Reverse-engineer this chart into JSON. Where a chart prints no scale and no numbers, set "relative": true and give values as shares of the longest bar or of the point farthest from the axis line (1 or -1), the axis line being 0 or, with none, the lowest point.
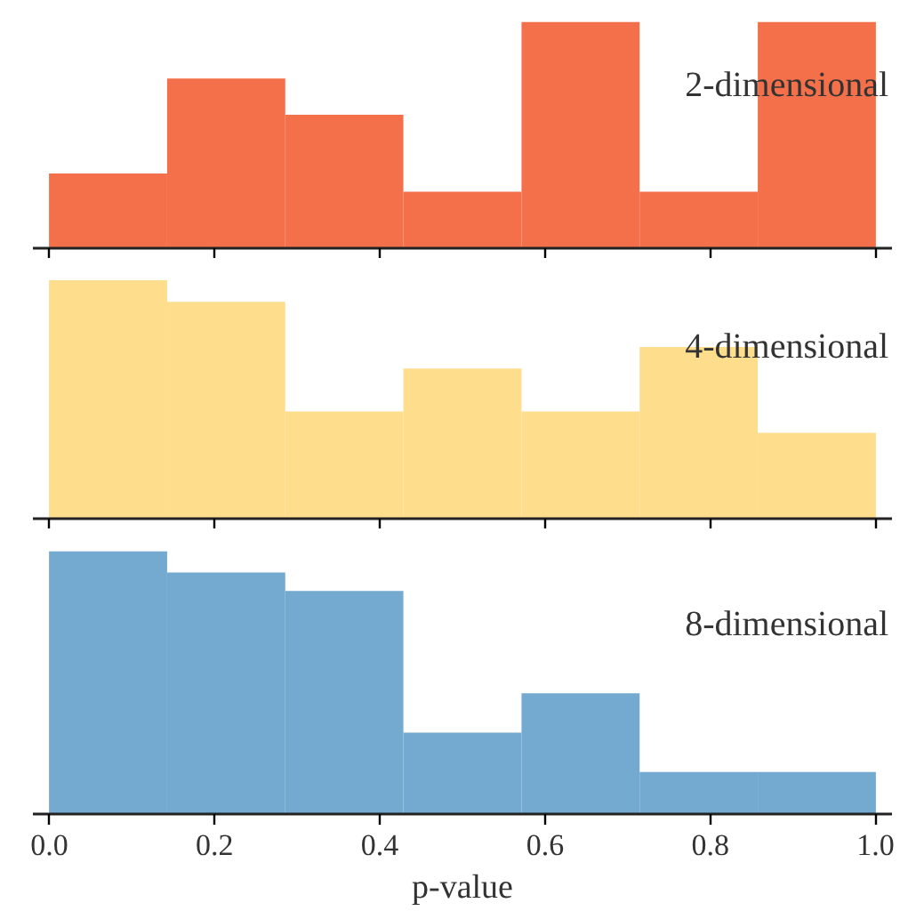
{
  "chart_data": [
    {
      "type": "bar",
      "relative": true,
      "x": [
        0.071,
        0.214,
        0.357,
        0.5,
        0.643,
        0.786,
        0.929
      ],
      "values": [
        0.33,
        0.75,
        0.59,
        0.25,
        1,
        0.25,
        1
      ],
      "color": "#f4704a",
      "xlim": [
        -0.02,
        1.02
      ],
      "xticks": [
        0,
        0.2,
        0.4,
        0.6,
        0.8,
        1
      ],
      "tick_labels": false,
      "grid": false,
      "annotations": [
        "2-dimensional"
      ]
    },
    {
      "type": "bar",
      "relative": true,
      "x": [
        0.071,
        0.214,
        0.357,
        0.5,
        0.643,
        0.786,
        0.929
      ],
      "values": [
        1,
        0.91,
        0.45,
        0.63,
        0.45,
        0.72,
        0.36
      ],
      "color": "#fedd8c",
      "xlim": [
        -0.02,
        1.02
      ],
      "xticks": [
        0,
        0.2,
        0.4,
        0.6,
        0.8,
        1
      ],
      "tick_labels": false,
      "grid": false,
      "annotations": [
        "4-dimensional"
      ]
    },
    {
      "type": "bar",
      "relative": true,
      "x": [
        0.071,
        0.214,
        0.357,
        0.5,
        0.643,
        0.786,
        0.929
      ],
      "values": [
        1,
        0.92,
        0.85,
        0.31,
        0.46,
        0.16,
        0.16
      ],
      "color": "#74aad0",
      "xlim": [
        -0.02,
        1.02
      ],
      "xticks": [
        {
          "value": 0,
          "label": "0.0"
        },
        0.2,
        0.4,
        0.6,
        0.8,
        {
          "value": 1,
          "label": "1.0"
        }
      ],
      "tick_labels": "x",
      "grid": false,
      "xlabel": "p-value",
      "annotations": [
        "8-dimensional"
      ]
    }
  ]
}
